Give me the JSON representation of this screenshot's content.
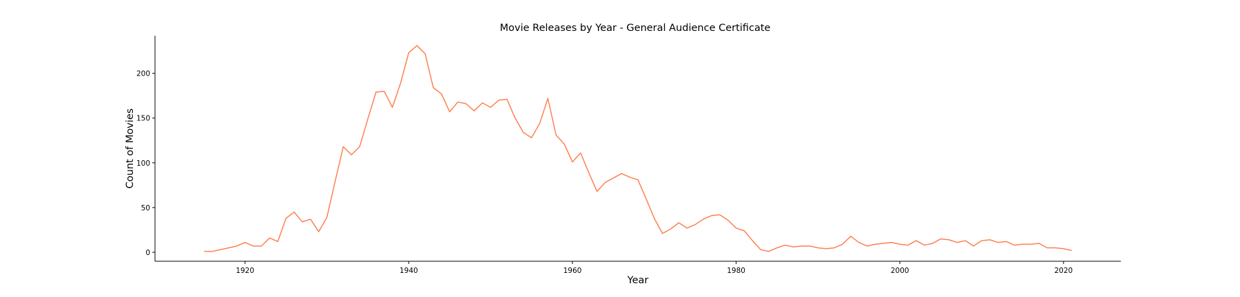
{
  "chart_data": {
    "type": "line",
    "title": "Movie Releases by Year - General Audience Certificate",
    "xlabel": "Year",
    "ylabel": "Count of Movies",
    "xlim": [
      1909,
      2027
    ],
    "ylim": [
      -10,
      242
    ],
    "xticks": [
      1920,
      1940,
      1960,
      1980,
      2000,
      2020
    ],
    "yticks": [
      0,
      50,
      100,
      150,
      200
    ],
    "grid": false,
    "legend": "none",
    "color": "#ff7f50",
    "x": [
      1915,
      1916,
      1917,
      1918,
      1919,
      1920,
      1921,
      1922,
      1923,
      1924,
      1925,
      1926,
      1927,
      1928,
      1929,
      1930,
      1931,
      1932,
      1933,
      1934,
      1935,
      1936,
      1937,
      1938,
      1939,
      1940,
      1941,
      1942,
      1943,
      1944,
      1945,
      1946,
      1947,
      1948,
      1949,
      1950,
      1951,
      1952,
      1953,
      1954,
      1955,
      1956,
      1957,
      1958,
      1959,
      1960,
      1961,
      1962,
      1963,
      1964,
      1965,
      1966,
      1967,
      1968,
      1969,
      1970,
      1971,
      1972,
      1973,
      1974,
      1975,
      1976,
      1977,
      1978,
      1979,
      1980,
      1981,
      1982,
      1983,
      1984,
      1985,
      1986,
      1987,
      1988,
      1989,
      1990,
      1991,
      1992,
      1993,
      1994,
      1995,
      1996,
      1997,
      1998,
      1999,
      2000,
      2001,
      2002,
      2003,
      2004,
      2005,
      2006,
      2007,
      2008,
      2009,
      2010,
      2011,
      2012,
      2013,
      2014,
      2015,
      2016,
      2017,
      2018,
      2019,
      2020,
      2021
    ],
    "y": [
      1,
      1,
      3,
      5,
      7,
      11,
      7,
      7,
      16,
      12,
      38,
      45,
      34,
      37,
      23,
      39,
      79,
      118,
      109,
      118,
      149,
      179,
      180,
      162,
      189,
      223,
      231,
      222,
      184,
      177,
      157,
      168,
      166,
      158,
      167,
      162,
      170,
      171,
      150,
      134,
      128,
      144,
      172,
      131,
      121,
      101,
      111,
      89,
      68,
      78,
      83,
      88,
      84,
      81,
      60,
      38,
      21,
      26,
      33,
      27,
      31,
      37,
      41,
      42,
      36,
      27,
      24,
      13,
      3,
      1,
      5,
      8,
      6,
      7,
      7,
      5,
      4,
      5,
      9,
      18,
      11,
      7,
      9,
      10,
      11,
      9,
      8,
      13,
      8,
      10,
      15,
      14,
      11,
      13,
      7,
      13,
      14,
      11,
      12,
      8,
      9,
      9,
      10,
      5,
      5,
      4,
      2
    ]
  }
}
